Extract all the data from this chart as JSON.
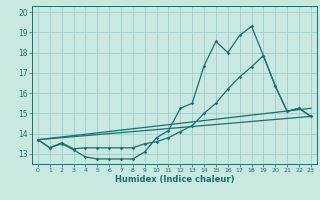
{
  "xlabel": "Humidex (Indice chaleur)",
  "bg_color": "#c8e8e0",
  "grid_color": "#9dcece",
  "line_color": "#1a7070",
  "xlim": [
    -0.5,
    23.5
  ],
  "ylim": [
    12.5,
    20.3
  ],
  "xticks": [
    0,
    1,
    2,
    3,
    4,
    5,
    6,
    7,
    8,
    9,
    10,
    11,
    12,
    13,
    14,
    15,
    16,
    17,
    18,
    19,
    20,
    21,
    22,
    23
  ],
  "yticks": [
    13,
    14,
    15,
    16,
    17,
    18,
    19,
    20
  ],
  "line1_x": [
    0,
    1,
    2,
    3,
    4,
    5,
    6,
    7,
    8,
    9,
    10,
    11,
    12,
    13,
    14,
    15,
    16,
    17,
    18,
    19,
    20,
    21,
    22,
    23
  ],
  "line1_y": [
    13.7,
    13.3,
    13.5,
    13.2,
    12.85,
    12.75,
    12.75,
    12.75,
    12.75,
    13.1,
    13.8,
    14.15,
    15.25,
    15.5,
    17.35,
    18.55,
    18.0,
    18.85,
    19.3,
    17.85,
    16.35,
    15.1,
    15.25,
    14.85
  ],
  "line2_x": [
    0,
    1,
    2,
    3,
    4,
    5,
    6,
    7,
    8,
    9,
    10,
    11,
    12,
    13,
    14,
    15,
    16,
    17,
    18,
    19,
    20,
    21,
    22,
    23
  ],
  "line2_y": [
    13.7,
    13.3,
    13.55,
    13.25,
    13.3,
    13.3,
    13.3,
    13.3,
    13.3,
    13.5,
    13.6,
    13.8,
    14.1,
    14.4,
    15.0,
    15.5,
    16.2,
    16.8,
    17.3,
    17.85,
    16.35,
    15.1,
    15.25,
    14.85
  ],
  "line3_x": [
    0,
    23
  ],
  "line3_y": [
    13.7,
    14.85
  ],
  "line4_x": [
    0,
    23
  ],
  "line4_y": [
    13.7,
    15.25
  ]
}
